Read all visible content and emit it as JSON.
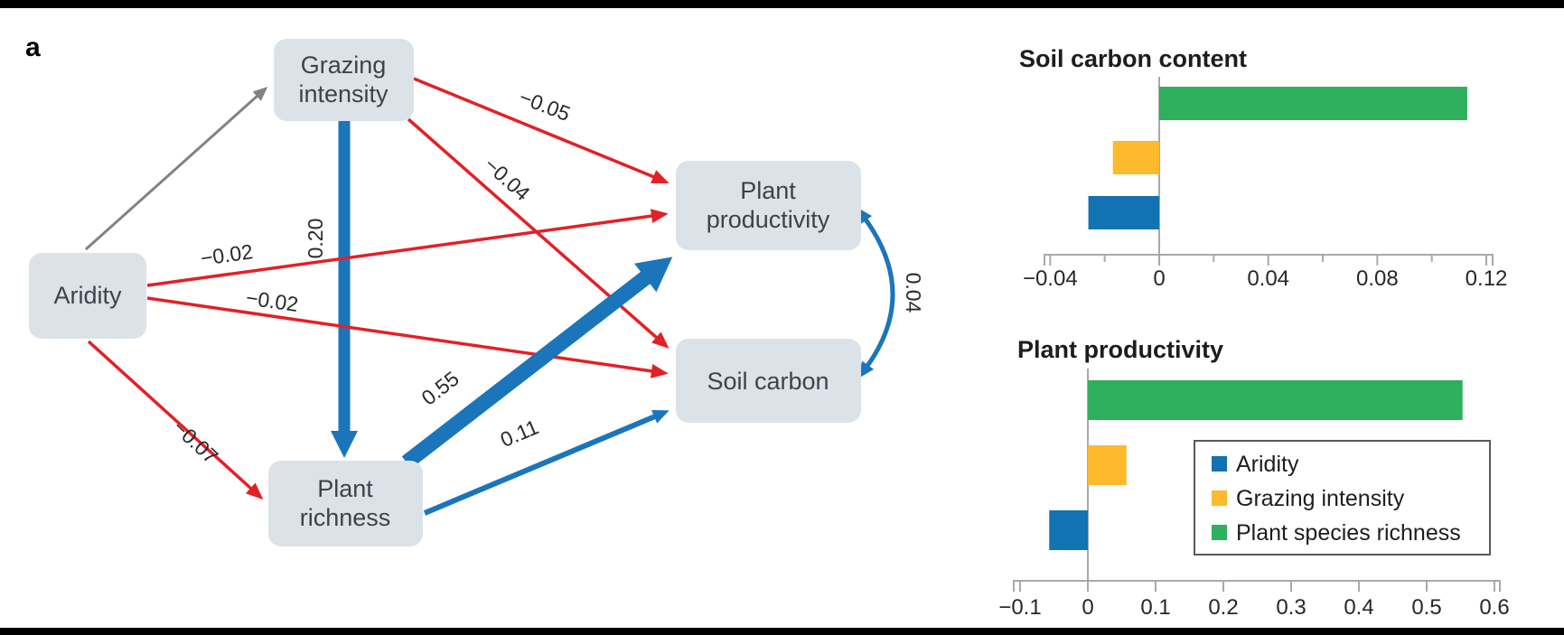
{
  "page": {
    "panel_label": "a"
  },
  "colors": {
    "red_arrow": "#e32026",
    "blue_arrow": "#1b75bb",
    "gray_arrow": "#808285",
    "node_fill": "#dce3e8",
    "axis_gray": "#a7a9ac",
    "bar_blue": "#1272b2",
    "bar_yellow": "#fcba2c",
    "bar_green": "#2fb05c"
  },
  "diagram": {
    "nodes": {
      "aridity": {
        "label": "Aridity"
      },
      "grazing": {
        "line1": "Grazing",
        "line2": "intensity"
      },
      "productivity": {
        "line1": "Plant",
        "line2": "productivity"
      },
      "soil": {
        "label": "Soil carbon"
      },
      "richness": {
        "line1": "Plant",
        "line2": "richness"
      }
    },
    "edges": [
      {
        "from": "Aridity",
        "to": "Grazing intensity",
        "label": "",
        "color": "gray"
      },
      {
        "from": "Grazing intensity",
        "to": "Plant richness",
        "label": "0.20",
        "color": "blue"
      },
      {
        "from": "Grazing intensity",
        "to": "Plant productivity",
        "label": "−0.05",
        "color": "red"
      },
      {
        "from": "Grazing intensity",
        "to": "Soil carbon",
        "label": "−0.04",
        "color": "red"
      },
      {
        "from": "Aridity",
        "to": "Plant productivity",
        "label": "−0.02",
        "color": "red"
      },
      {
        "from": "Aridity",
        "to": "Soil carbon",
        "label": "−0.02",
        "color": "red"
      },
      {
        "from": "Aridity",
        "to": "Plant richness",
        "label": "−0.07",
        "color": "red"
      },
      {
        "from": "Plant richness",
        "to": "Plant productivity",
        "label": "0.55",
        "color": "blue"
      },
      {
        "from": "Plant richness",
        "to": "Soil carbon",
        "label": "0.11",
        "color": "blue"
      },
      {
        "from": "Plant productivity",
        "to": "Soil carbon",
        "label": "0.04",
        "color": "blue",
        "bidirectional": true
      }
    ]
  },
  "chart_data": [
    {
      "type": "bar",
      "orientation": "horizontal",
      "title": "Soil carbon content",
      "categories": [
        "Plant species richness",
        "Grazing intensity",
        "Aridity"
      ],
      "values": [
        0.113,
        -0.017,
        -0.026
      ],
      "bar_colors": [
        "#2fb05c",
        "#fcba2c",
        "#1272b2"
      ],
      "xlim": [
        -0.055,
        0.125
      ],
      "ticks": [
        -0.04,
        0,
        0.04,
        0.08,
        0.12
      ],
      "tick_labels": [
        "−0.04",
        "0",
        "0.04",
        "0.08",
        "0.12"
      ],
      "minor_ticks": [
        -0.02,
        0.02,
        0.06,
        0.1
      ],
      "grid": false,
      "legend_position": "none"
    },
    {
      "type": "bar",
      "orientation": "horizontal",
      "title": "Plant productivity",
      "categories": [
        "Plant species richness",
        "Grazing intensity",
        "Aridity"
      ],
      "values": [
        0.553,
        0.057,
        -0.057
      ],
      "bar_colors": [
        "#2fb05c",
        "#fcba2c",
        "#1272b2"
      ],
      "xlim": [
        -0.11,
        0.61
      ],
      "ticks": [
        -0.1,
        0,
        0.1,
        0.2,
        0.3,
        0.4,
        0.5,
        0.6
      ],
      "tick_labels": [
        "−0.1",
        "0",
        "0.1",
        "0.2",
        "0.3",
        "0.4",
        "0.5",
        "0.6"
      ],
      "minor_ticks": [],
      "grid": false,
      "legend_position": "inside-right"
    }
  ],
  "legend": {
    "items": [
      {
        "label": "Aridity",
        "color": "#1272b2"
      },
      {
        "label": "Grazing intensity",
        "color": "#fcba2c"
      },
      {
        "label": "Plant species richness",
        "color": "#2fb05c"
      }
    ]
  }
}
